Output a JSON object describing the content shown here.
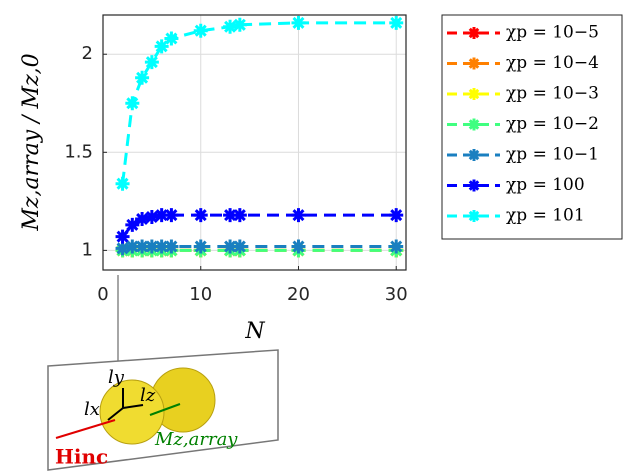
{
  "chart_data": {
    "type": "line",
    "x_label": "N",
    "y_label": "Mz,array / Mz,0",
    "x": [
      2,
      3,
      4,
      5,
      6,
      7,
      10,
      13,
      14,
      20,
      30
    ],
    "xlim": [
      0,
      31
    ],
    "xticks": [
      0,
      10,
      20,
      30
    ],
    "ylim": [
      0.9,
      2.2
    ],
    "yticks": [
      1,
      1.5,
      2
    ],
    "grid": true,
    "legend": "outside-right",
    "series": [
      {
        "name": "χp = 10−5",
        "color": "#ff0000",
        "values": [
          1.0,
          1.0,
          1.0,
          1.0,
          1.0,
          1.0,
          1.0,
          1.0,
          1.0,
          1.0,
          1.0
        ]
      },
      {
        "name": "χp = 10−4",
        "color": "#ff8000",
        "values": [
          1.0,
          1.0,
          1.0,
          1.0,
          1.0,
          1.0,
          1.0,
          1.0,
          1.0,
          1.0,
          1.0
        ]
      },
      {
        "name": "χp = 10−3",
        "color": "#ffff00",
        "values": [
          1.0,
          1.0,
          1.0,
          1.0,
          1.0,
          1.0,
          1.0,
          1.0,
          1.0,
          1.0,
          1.0
        ]
      },
      {
        "name": "χp = 10−2",
        "color": "#40ff80",
        "values": [
          1.0,
          1.0,
          1.0,
          1.0,
          1.0,
          1.0,
          1.0,
          1.0,
          1.0,
          1.0,
          1.0
        ]
      },
      {
        "name": "χp = 10−1",
        "color": "#1a7fc0",
        "values": [
          1.01,
          1.02,
          1.02,
          1.02,
          1.02,
          1.02,
          1.02,
          1.02,
          1.02,
          1.02,
          1.02
        ]
      },
      {
        "name": "χp = 100",
        "color": "#0000ff",
        "values": [
          1.07,
          1.13,
          1.16,
          1.17,
          1.18,
          1.18,
          1.18,
          1.18,
          1.18,
          1.18,
          1.18
        ]
      },
      {
        "name": "χp = 101",
        "color": "#00ffff",
        "values": [
          1.34,
          1.75,
          1.88,
          1.96,
          2.04,
          2.08,
          2.12,
          2.14,
          2.15,
          2.16,
          2.16
        ]
      }
    ]
  },
  "inset": {
    "labels": [
      "ly",
      "lx",
      "lz",
      "Mz,array",
      "Hinc"
    ]
  }
}
